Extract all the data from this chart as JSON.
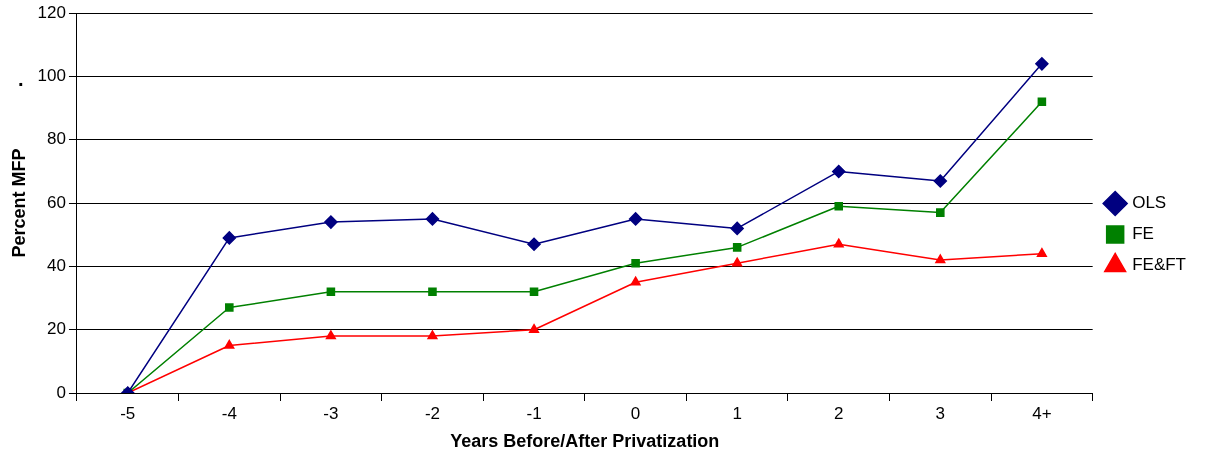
{
  "chart_data": {
    "type": "line",
    "xlabel": "Years Before/After Privatization",
    "ylabel": "Percent MFP",
    "annotations": [
      "."
    ],
    "categories": [
      "-5",
      "-4",
      "-3",
      "-2",
      "-1",
      "0",
      "1",
      "2",
      "3",
      "4+"
    ],
    "series": [
      {
        "name": "OLS",
        "color": "#000080",
        "marker": "diamond",
        "values": [
          0,
          49,
          54,
          55,
          47,
          55,
          52,
          70,
          67,
          104
        ]
      },
      {
        "name": "FE",
        "color": "#008000",
        "marker": "square",
        "values": [
          0,
          27,
          32,
          32,
          32,
          41,
          46,
          59,
          57,
          92
        ]
      },
      {
        "name": "FE&FT",
        "color": "#ff0000",
        "marker": "triangle",
        "values": [
          0,
          15,
          18,
          18,
          20,
          35,
          41,
          47,
          42,
          44
        ]
      }
    ],
    "ylim": [
      0,
      120
    ],
    "yticks": [
      0,
      20,
      40,
      60,
      80,
      100,
      120
    ],
    "grid": "y",
    "legend": "right"
  }
}
